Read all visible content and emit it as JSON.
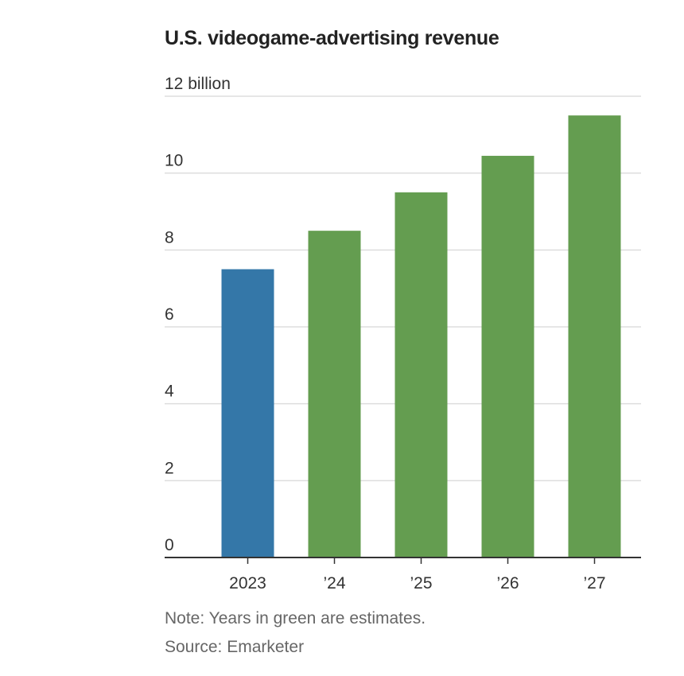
{
  "chart_data": {
    "type": "bar",
    "title": "U.S. videogame-advertising revenue",
    "categories": [
      "2023",
      "’24",
      "’25",
      "’26",
      "’27"
    ],
    "values": [
      7.5,
      8.5,
      9.5,
      10.45,
      11.5
    ],
    "estimated": [
      false,
      true,
      true,
      true,
      true
    ],
    "ylim": [
      0,
      12
    ],
    "yticks": [
      0,
      2,
      4,
      6,
      8,
      10,
      12
    ],
    "ytick_labels": [
      "0",
      "2",
      "4",
      "6",
      "8",
      "10",
      "12 billion"
    ],
    "xlabel": "",
    "ylabel": "",
    "grid": true,
    "colors": {
      "actual": "#3477a8",
      "estimate": "#649d50",
      "grid": "#dddddd",
      "axis": "#333333"
    },
    "note": "Note: Years in green are estimates.",
    "source": "Source: Emarketer"
  }
}
